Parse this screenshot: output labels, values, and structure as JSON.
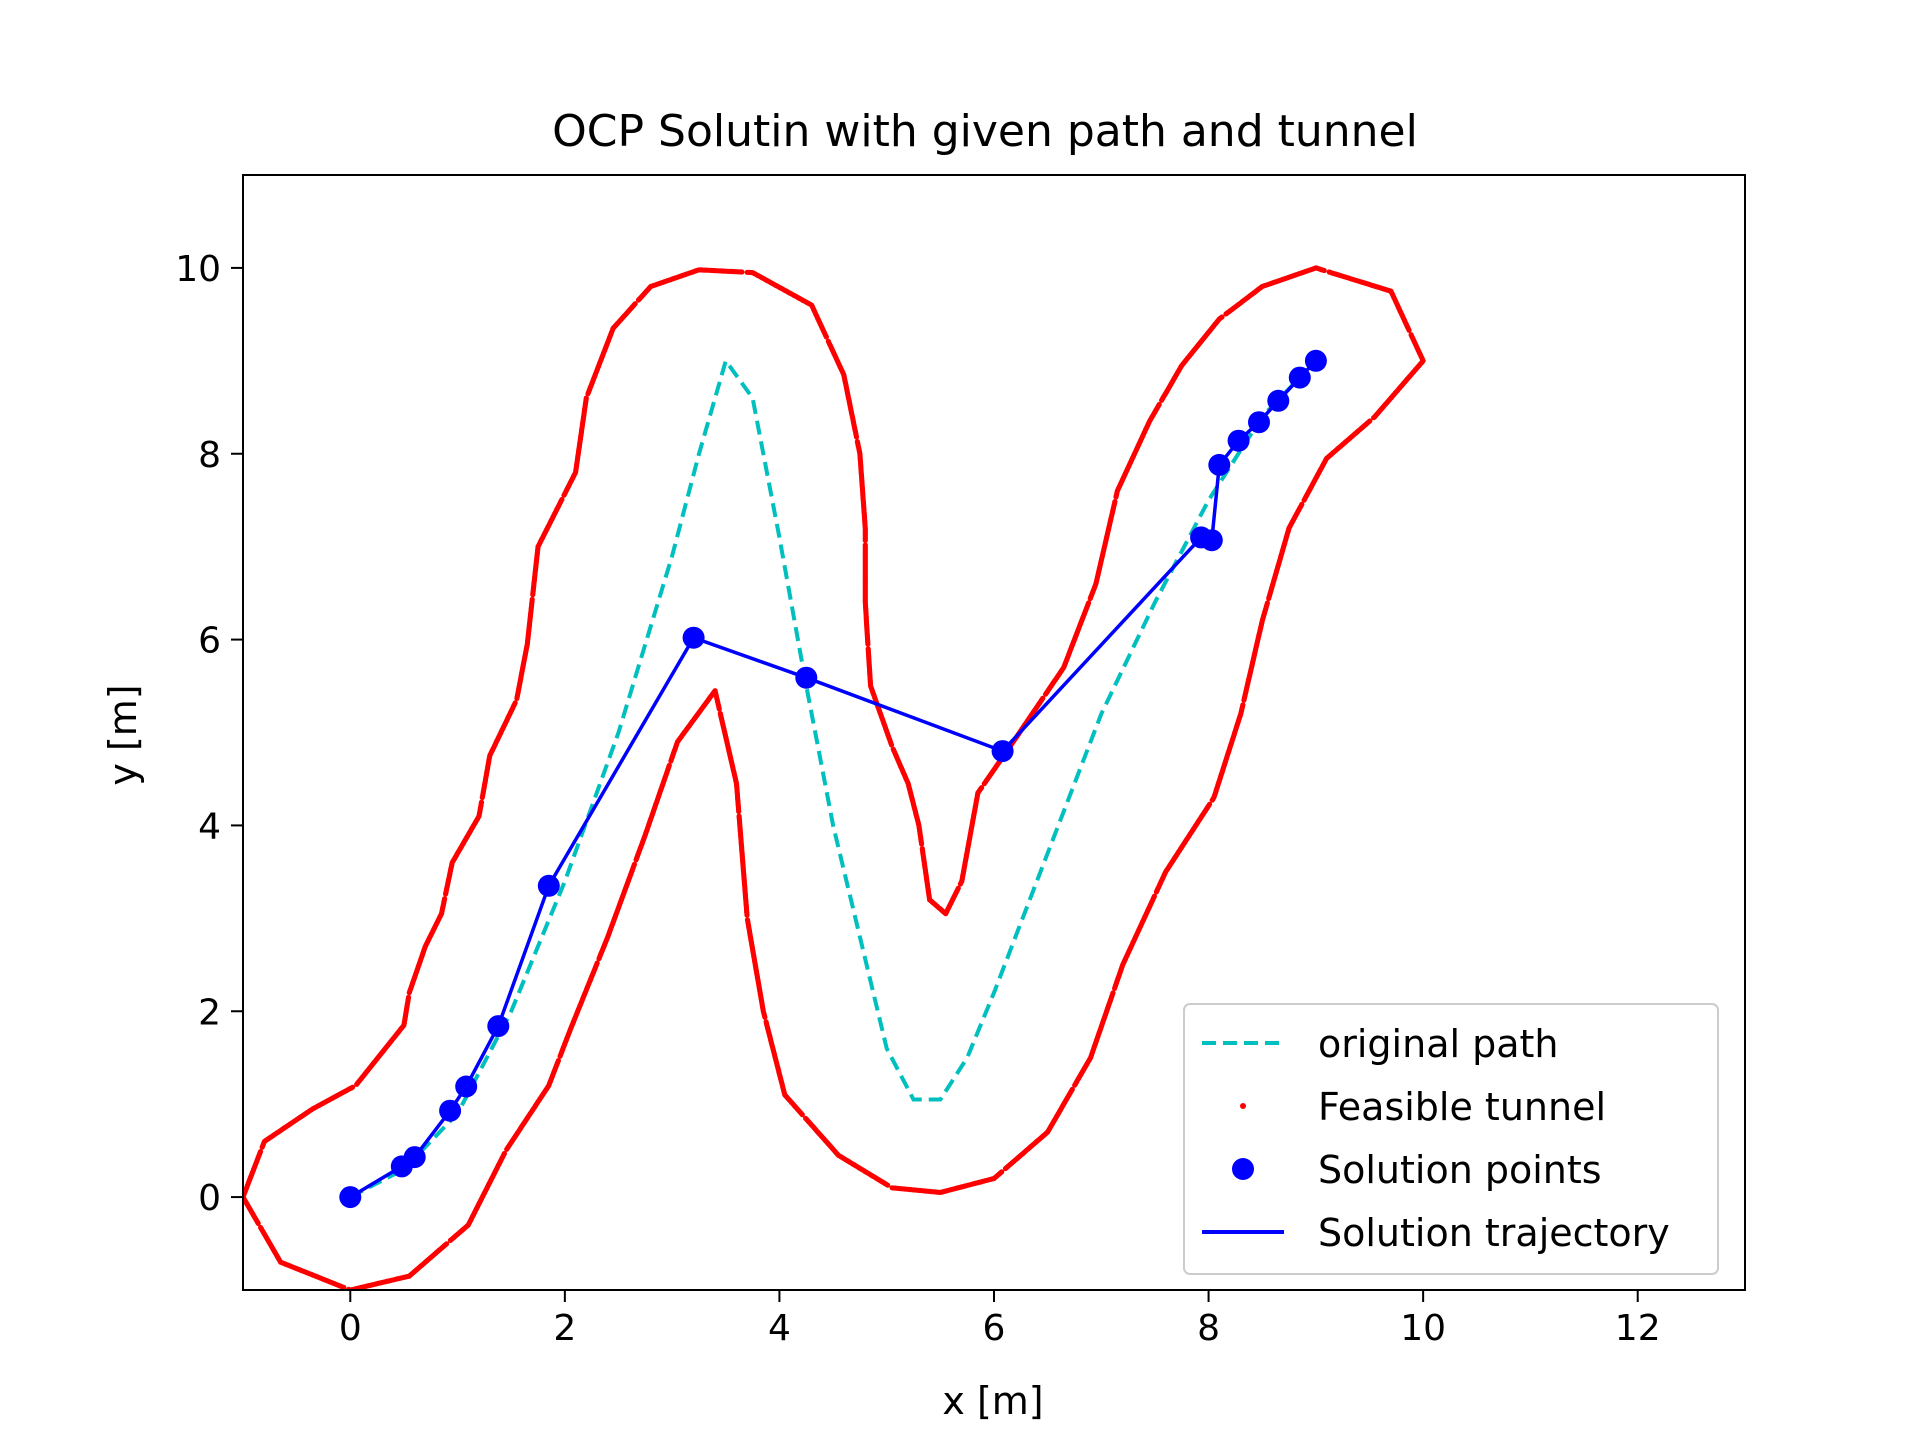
{
  "chart_data": {
    "type": "line",
    "title": "OCP Solutin with given path and tunnel",
    "xlabel": "x [m]",
    "ylabel": "y [m]",
    "xlim": [
      -1,
      13
    ],
    "ylim": [
      -1,
      11
    ],
    "xticks": [
      0,
      2,
      4,
      6,
      8,
      10,
      12
    ],
    "yticks": [
      0,
      2,
      4,
      6,
      8,
      10
    ],
    "tick_labels_x": [
      "0",
      "2",
      "4",
      "6",
      "8",
      "10",
      "12"
    ],
    "tick_labels_y": [
      "0",
      "2",
      "4",
      "6",
      "8",
      "10"
    ],
    "grid": false,
    "legend_position": "lower-right",
    "colors": {
      "original_path": "#00bfbf",
      "tunnel": "#ff0000",
      "solution": "#0000ff"
    },
    "series": [
      {
        "name": "original path",
        "style": "dashed",
        "points": [
          [
            0,
            0
          ],
          [
            0.5,
            0.3
          ],
          [
            1,
            0.9
          ],
          [
            1.5,
            2
          ],
          [
            2,
            3.4
          ],
          [
            2.5,
            5
          ],
          [
            3,
            6.9
          ],
          [
            3.25,
            8
          ],
          [
            3.5,
            9
          ],
          [
            3.75,
            8.6
          ],
          [
            4,
            7.1
          ],
          [
            4.25,
            5.5
          ],
          [
            4.5,
            4
          ],
          [
            4.75,
            2.8
          ],
          [
            5,
            1.6
          ],
          [
            5.25,
            1.05
          ],
          [
            5.5,
            1.05
          ],
          [
            5.75,
            1.5
          ],
          [
            6,
            2.2
          ],
          [
            6.5,
            3.7
          ],
          [
            7,
            5.2
          ],
          [
            7.5,
            6.4
          ],
          [
            8,
            7.5
          ],
          [
            8.5,
            8.4
          ],
          [
            9,
            9
          ]
        ]
      },
      {
        "name": "Feasible tunnel",
        "style": "points",
        "outer_boundary": [
          [
            -1,
            0
          ],
          [
            -0.65,
            -0.7
          ],
          [
            0,
            -1
          ],
          [
            0.55,
            -0.85
          ],
          [
            0.85,
            -0.55
          ],
          [
            1.1,
            -0.3
          ],
          [
            1.45,
            0.5
          ],
          [
            1.85,
            1.2
          ],
          [
            2.05,
            1.8
          ],
          [
            2.4,
            2.8
          ],
          [
            2.75,
            3.9
          ],
          [
            3.05,
            4.9
          ],
          [
            3.4,
            5.45
          ],
          [
            3.6,
            4.45
          ],
          [
            3.7,
            3
          ],
          [
            3.85,
            2
          ],
          [
            4.05,
            1.1
          ],
          [
            4.55,
            0.45
          ],
          [
            5.05,
            0.1
          ],
          [
            5.5,
            0.05
          ],
          [
            6,
            0.2
          ],
          [
            6.5,
            0.7
          ],
          [
            6.9,
            1.5
          ],
          [
            7.2,
            2.5
          ],
          [
            7.6,
            3.5
          ],
          [
            8.05,
            4.3
          ],
          [
            8.3,
            5.2
          ],
          [
            8.5,
            6.2
          ],
          [
            8.75,
            7.2
          ],
          [
            9.1,
            7.95
          ],
          [
            9.55,
            8.4
          ],
          [
            10,
            9
          ],
          [
            9.7,
            9.75
          ],
          [
            9,
            10
          ],
          [
            8.5,
            9.8
          ],
          [
            8.1,
            9.45
          ],
          [
            7.75,
            8.95
          ],
          [
            7.45,
            8.35
          ],
          [
            7.15,
            7.6
          ],
          [
            6.95,
            6.6
          ],
          [
            6.65,
            5.7
          ],
          [
            6.15,
            4.85
          ],
          [
            5.85,
            4.35
          ],
          [
            5.7,
            3.4
          ],
          [
            5.55,
            3.05
          ],
          [
            5.4,
            3.2
          ],
          [
            5.3,
            4
          ],
          [
            5.2,
            4.45
          ],
          [
            5.05,
            4.85
          ],
          [
            4.85,
            5.5
          ],
          [
            4.8,
            6.4
          ],
          [
            4.8,
            7.2
          ],
          [
            4.75,
            8
          ],
          [
            4.6,
            8.85
          ],
          [
            4.3,
            9.6
          ],
          [
            3.75,
            9.95
          ],
          [
            3.25,
            9.98
          ],
          [
            2.8,
            9.8
          ],
          [
            2.45,
            9.35
          ],
          [
            2.2,
            8.6
          ],
          [
            2.1,
            7.8
          ],
          [
            1.75,
            7
          ],
          [
            1.65,
            5.95
          ],
          [
            1.55,
            5.35
          ],
          [
            1.3,
            4.75
          ],
          [
            1.2,
            4.1
          ],
          [
            0.95,
            3.6
          ],
          [
            0.85,
            3.05
          ],
          [
            0.7,
            2.7
          ],
          [
            0.55,
            2.2
          ],
          [
            0.5,
            1.85
          ],
          [
            0.05,
            1.2
          ],
          [
            -0.35,
            0.95
          ],
          [
            -0.8,
            0.6
          ]
        ]
      },
      {
        "name": "Solution points",
        "style": "markers",
        "points": [
          [
            0,
            0
          ],
          [
            0.48,
            0.33
          ],
          [
            0.6,
            0.43
          ],
          [
            0.93,
            0.93
          ],
          [
            1.08,
            1.19
          ],
          [
            1.38,
            1.84
          ],
          [
            1.85,
            3.35
          ],
          [
            3.2,
            6.02
          ],
          [
            4.25,
            5.59
          ],
          [
            6.08,
            4.8
          ],
          [
            7.93,
            7.1
          ],
          [
            8.03,
            7.07
          ],
          [
            8.1,
            7.88
          ],
          [
            8.28,
            8.14
          ],
          [
            8.47,
            8.34
          ],
          [
            8.65,
            8.57
          ],
          [
            8.85,
            8.82
          ],
          [
            9,
            9
          ]
        ]
      },
      {
        "name": "Solution trajectory",
        "style": "solid",
        "points": [
          [
            0,
            0
          ],
          [
            0.48,
            0.33
          ],
          [
            0.6,
            0.43
          ],
          [
            0.93,
            0.93
          ],
          [
            1.08,
            1.19
          ],
          [
            1.38,
            1.84
          ],
          [
            1.85,
            3.35
          ],
          [
            3.2,
            6.02
          ],
          [
            4.25,
            5.59
          ],
          [
            6.08,
            4.8
          ],
          [
            7.93,
            7.1
          ],
          [
            8.03,
            7.07
          ],
          [
            8.1,
            7.88
          ],
          [
            8.28,
            8.14
          ],
          [
            8.47,
            8.34
          ],
          [
            8.65,
            8.57
          ],
          [
            8.85,
            8.82
          ],
          [
            9,
            9
          ]
        ]
      }
    ]
  }
}
